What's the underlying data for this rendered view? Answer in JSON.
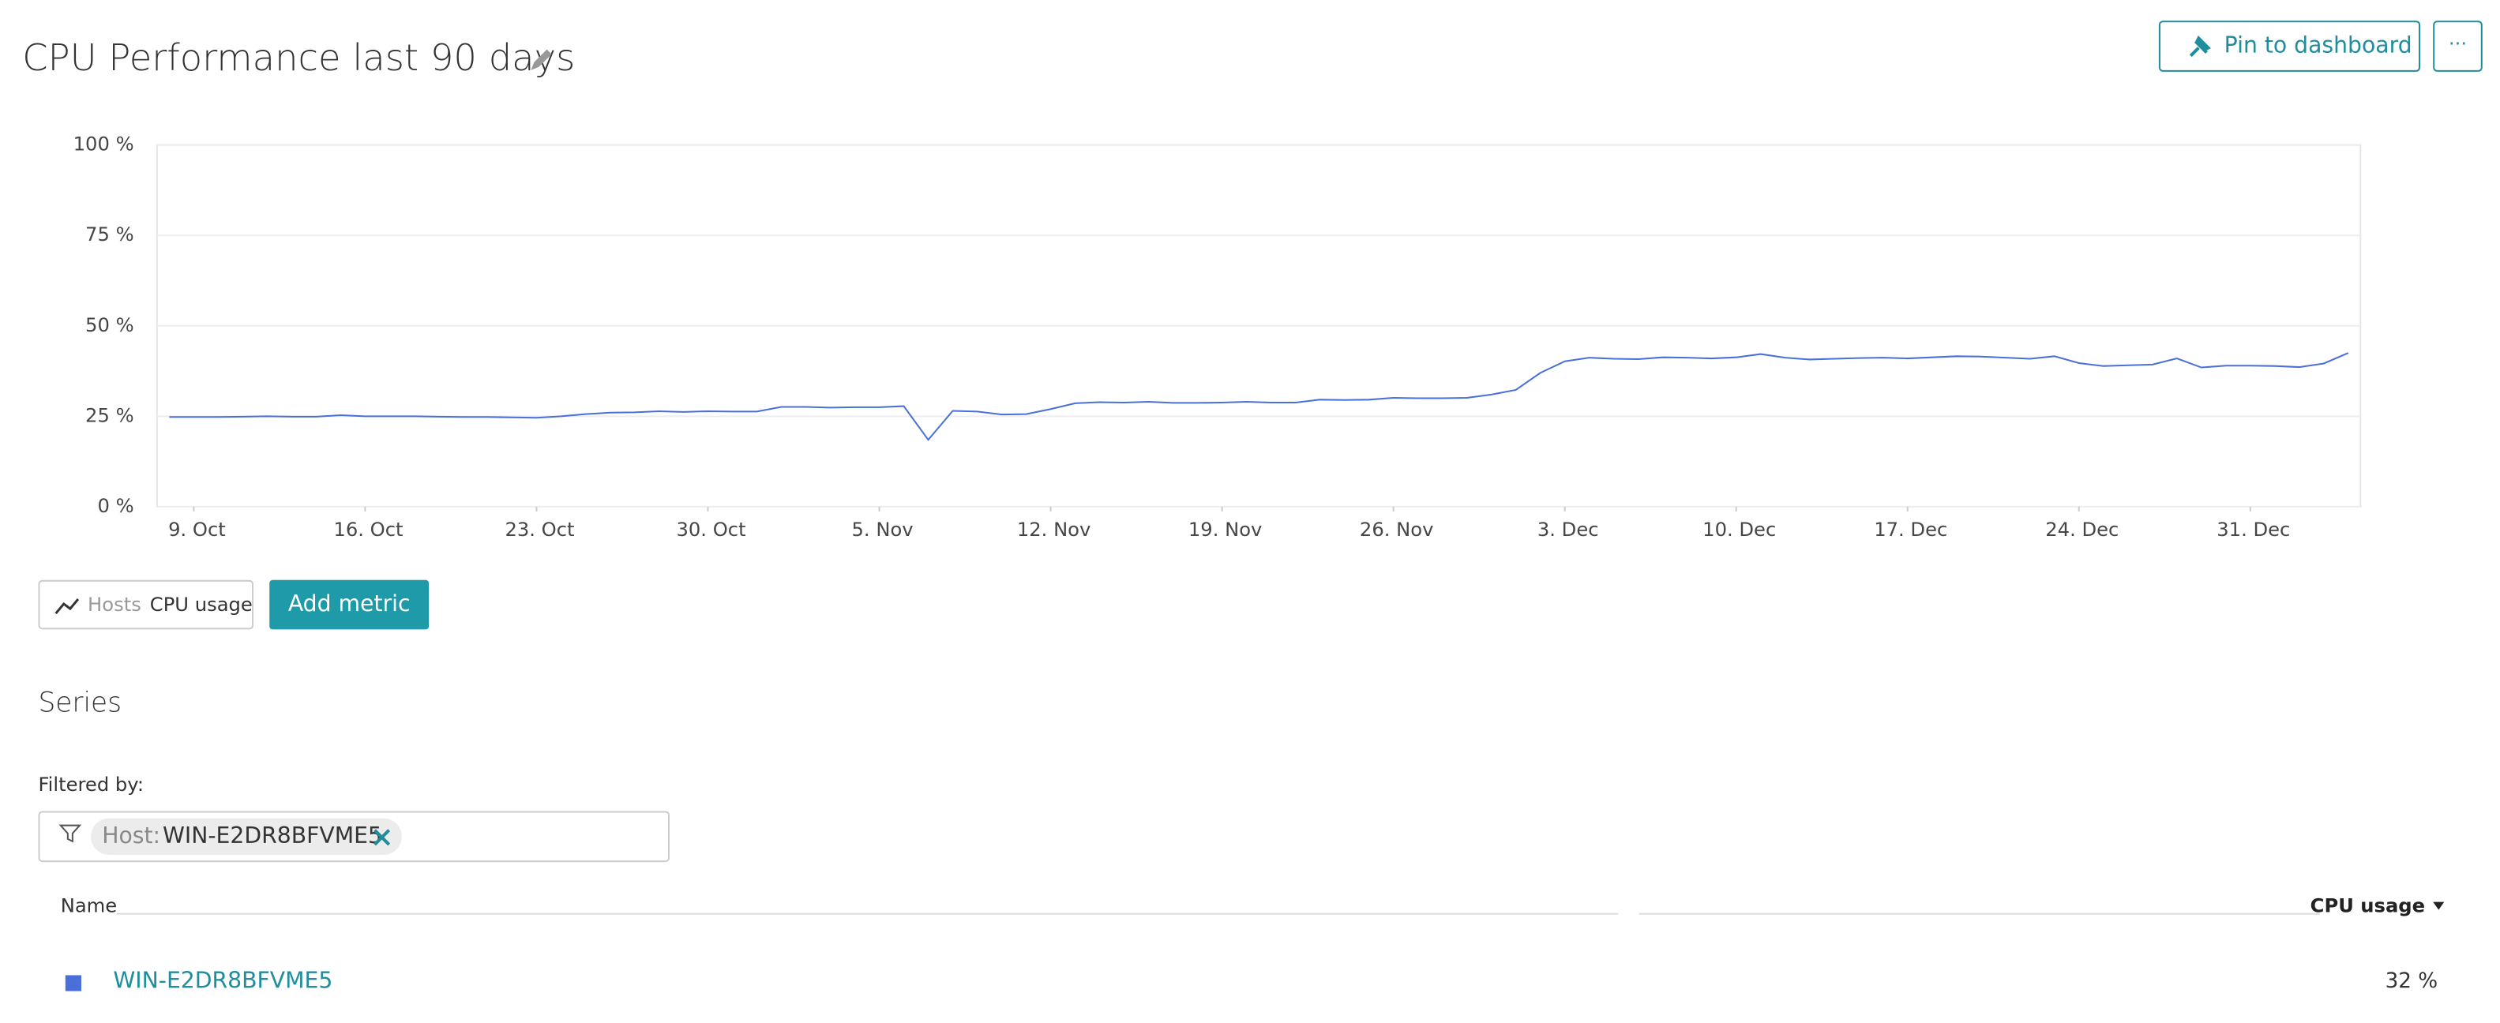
{
  "header": {
    "title": "CPU Performance last 90 days",
    "pin_button": "Pin to dashboard",
    "more_button": "···"
  },
  "chart_data": {
    "type": "line",
    "x": [
      -1,
      0,
      1,
      2,
      3,
      4,
      5,
      6,
      7,
      8,
      9,
      10,
      11,
      12,
      13,
      14,
      15,
      16,
      17,
      18,
      19,
      20,
      21,
      22,
      23,
      24,
      25,
      26,
      27,
      28,
      29,
      30,
      31,
      32,
      33,
      34,
      35,
      36,
      37,
      38,
      39,
      40,
      41,
      42,
      43,
      44,
      45,
      46,
      47,
      48,
      49,
      50,
      51,
      52,
      53,
      54,
      55,
      56,
      57,
      58,
      59,
      60,
      61,
      62,
      63,
      64,
      65,
      66,
      67,
      68,
      69,
      70,
      71,
      72,
      73,
      74,
      75,
      76,
      77,
      78,
      79,
      80,
      81,
      82,
      83,
      84,
      85,
      86,
      87,
      88
    ],
    "series": [
      {
        "name": "CPU usage",
        "color": "#4a6fd8",
        "values": [
          24.8,
          24.8,
          24.8,
          24.9,
          25,
          24.9,
          24.9,
          25.3,
          25,
          25,
          25,
          24.9,
          24.8,
          24.8,
          24.7,
          24.6,
          25,
          25.6,
          26,
          26.1,
          26.4,
          26.2,
          26.4,
          26.3,
          26.3,
          27.6,
          27.6,
          27.4,
          27.5,
          27.5,
          27.8,
          18.5,
          26.5,
          26.3,
          25.5,
          25.6,
          27,
          28.6,
          28.9,
          28.8,
          29,
          28.7,
          28.7,
          28.8,
          29,
          28.8,
          28.8,
          29.6,
          29.5,
          29.6,
          30.1,
          30,
          30,
          30.1,
          31,
          32.3,
          37,
          40.2,
          41.2,
          40.9,
          40.8,
          41.3,
          41.2,
          41,
          41.3,
          42.2,
          41.2,
          40.7,
          40.9,
          41.1,
          41.2,
          41,
          41.3,
          41.6,
          41.5,
          41.2,
          40.9,
          41.6,
          39.7,
          38.9,
          39.1,
          39.3,
          41,
          38.5,
          39,
          39,
          38.9,
          38.6,
          39.6,
          42.5
        ]
      }
    ],
    "xlim": [
      -1.5,
      88.5
    ],
    "xticks": [
      {
        "value": 0,
        "label": "9. Oct"
      },
      {
        "value": 7,
        "label": "16. Oct"
      },
      {
        "value": 14,
        "label": "23. Oct"
      },
      {
        "value": 21,
        "label": "30. Oct"
      },
      {
        "value": 28,
        "label": "5. Nov"
      },
      {
        "value": 35,
        "label": "12. Nov"
      },
      {
        "value": 42,
        "label": "19. Nov"
      },
      {
        "value": 49,
        "label": "26. Nov"
      },
      {
        "value": 56,
        "label": "3. Dec"
      },
      {
        "value": 63,
        "label": "10. Dec"
      },
      {
        "value": 70,
        "label": "17. Dec"
      },
      {
        "value": 77,
        "label": "24. Dec"
      },
      {
        "value": 84,
        "label": "31. Dec"
      }
    ],
    "ylim": [
      0,
      100
    ],
    "yticks": [
      {
        "value": 0,
        "label": "0 %"
      },
      {
        "value": 25,
        "label": "25 %"
      },
      {
        "value": 50,
        "label": "50 %"
      },
      {
        "value": 75,
        "label": "75 %"
      },
      {
        "value": 100,
        "label": "100 %"
      }
    ],
    "grid": true
  },
  "metric": {
    "entity": "Hosts",
    "name": "CPU usage",
    "add_button": "Add metric"
  },
  "series_section": {
    "title": "Series",
    "filter_label": "Filtered by:",
    "filter_key": "Host:",
    "filter_value": "WIN-E2DR8BFVME5",
    "columns": [
      "Name",
      "CPU usage"
    ],
    "rows": [
      {
        "name": "WIN-E2DR8BFVME5",
        "value": "32 %"
      }
    ]
  }
}
